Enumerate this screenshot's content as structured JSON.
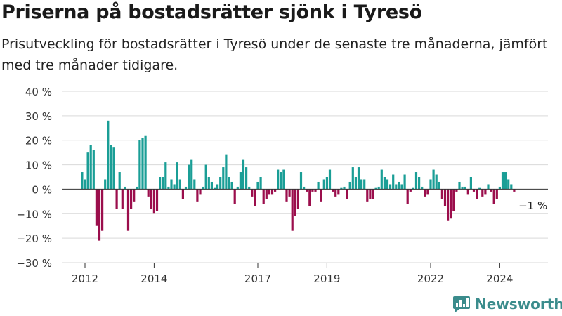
{
  "header": {
    "title": "Priserna på bostadsrätter sjönk i Tyresö",
    "subtitle": "Prisutveckling för bostadsrätter i Tyresö under de senaste tre månaderna, jämfört med tre månader tidigare."
  },
  "brand": {
    "name": "Newsworthy"
  },
  "colors": {
    "positive": "#1a9e96",
    "negative": "#9b0e4c",
    "grid": "#d9d9d9",
    "axis": "#333333",
    "brand": "#3b8c8c"
  },
  "chart_data": {
    "type": "bar",
    "x_start": "2011-12",
    "x_end": "2025-01",
    "ylim": [
      -30,
      40
    ],
    "yticks": [
      40,
      30,
      20,
      10,
      0,
      -10,
      -20,
      -30
    ],
    "ytick_labels": [
      "40 %",
      "30 %",
      "20 %",
      "10 %",
      "0 %",
      "−10 %",
      "−20 %",
      "−30 %"
    ],
    "xticks": [
      {
        "date": "2012-01",
        "label": "2012"
      },
      {
        "date": "2014-01",
        "label": "2014"
      },
      {
        "date": "2017-01",
        "label": "2017"
      },
      {
        "date": "2019-01",
        "label": "2019"
      },
      {
        "date": "2022-01",
        "label": "2022"
      },
      {
        "date": "2024-01",
        "label": "2024"
      }
    ],
    "annotation": {
      "text": "−1 %",
      "date": "2024-08",
      "value": -1
    },
    "series": [
      {
        "values": [
          {
            "date": "2011-12",
            "value": 7
          },
          {
            "date": "2012-01",
            "value": 4
          },
          {
            "date": "2012-02",
            "value": 15
          },
          {
            "date": "2012-03",
            "value": 18
          },
          {
            "date": "2012-04",
            "value": 16
          },
          {
            "date": "2012-05",
            "value": -15
          },
          {
            "date": "2012-06",
            "value": -21
          },
          {
            "date": "2012-07",
            "value": -17
          },
          {
            "date": "2012-08",
            "value": 4
          },
          {
            "date": "2012-09",
            "value": 28
          },
          {
            "date": "2012-10",
            "value": 18
          },
          {
            "date": "2012-11",
            "value": 17
          },
          {
            "date": "2012-12",
            "value": -8
          },
          {
            "date": "2013-01",
            "value": 7
          },
          {
            "date": "2013-02",
            "value": -8
          },
          {
            "date": "2013-03",
            "value": 1
          },
          {
            "date": "2013-04",
            "value": -17
          },
          {
            "date": "2013-05",
            "value": -8
          },
          {
            "date": "2013-06",
            "value": -5
          },
          {
            "date": "2013-07",
            "value": 1
          },
          {
            "date": "2013-08",
            "value": 20
          },
          {
            "date": "2013-09",
            "value": 21
          },
          {
            "date": "2013-10",
            "value": 22
          },
          {
            "date": "2013-11",
            "value": -3
          },
          {
            "date": "2013-12",
            "value": -8
          },
          {
            "date": "2014-01",
            "value": -10
          },
          {
            "date": "2014-02",
            "value": -9
          },
          {
            "date": "2014-03",
            "value": 5
          },
          {
            "date": "2014-04",
            "value": 5
          },
          {
            "date": "2014-05",
            "value": 11
          },
          {
            "date": "2014-06",
            "value": 1
          },
          {
            "date": "2014-07",
            "value": 4
          },
          {
            "date": "2014-08",
            "value": 2
          },
          {
            "date": "2014-09",
            "value": 11
          },
          {
            "date": "2014-10",
            "value": 4
          },
          {
            "date": "2014-11",
            "value": -4
          },
          {
            "date": "2014-12",
            "value": 1
          },
          {
            "date": "2015-01",
            "value": 10
          },
          {
            "date": "2015-02",
            "value": 12
          },
          {
            "date": "2015-03",
            "value": 4
          },
          {
            "date": "2015-04",
            "value": -5
          },
          {
            "date": "2015-05",
            "value": -2
          },
          {
            "date": "2015-06",
            "value": 1
          },
          {
            "date": "2015-07",
            "value": 10
          },
          {
            "date": "2015-08",
            "value": 5
          },
          {
            "date": "2015-09",
            "value": 3
          },
          {
            "date": "2015-10",
            "value": 0.5
          },
          {
            "date": "2015-11",
            "value": 2
          },
          {
            "date": "2015-12",
            "value": 5
          },
          {
            "date": "2016-01",
            "value": 9
          },
          {
            "date": "2016-02",
            "value": 14
          },
          {
            "date": "2016-03",
            "value": 5
          },
          {
            "date": "2016-04",
            "value": 3
          },
          {
            "date": "2016-05",
            "value": -6
          },
          {
            "date": "2016-06",
            "value": 1
          },
          {
            "date": "2016-07",
            "value": 7
          },
          {
            "date": "2016-08",
            "value": 12
          },
          {
            "date": "2016-09",
            "value": 9
          },
          {
            "date": "2016-10",
            "value": 1
          },
          {
            "date": "2016-11",
            "value": -3
          },
          {
            "date": "2016-12",
            "value": -7
          },
          {
            "date": "2017-01",
            "value": 3
          },
          {
            "date": "2017-02",
            "value": 5
          },
          {
            "date": "2017-03",
            "value": -6
          },
          {
            "date": "2017-04",
            "value": -4
          },
          {
            "date": "2017-05",
            "value": -2
          },
          {
            "date": "2017-06",
            "value": -2
          },
          {
            "date": "2017-07",
            "value": -1
          },
          {
            "date": "2017-08",
            "value": 8
          },
          {
            "date": "2017-09",
            "value": 7
          },
          {
            "date": "2017-10",
            "value": 8
          },
          {
            "date": "2017-11",
            "value": -5
          },
          {
            "date": "2017-12",
            "value": -3
          },
          {
            "date": "2018-01",
            "value": -17
          },
          {
            "date": "2018-02",
            "value": -11
          },
          {
            "date": "2018-03",
            "value": -8
          },
          {
            "date": "2018-04",
            "value": 7
          },
          {
            "date": "2018-05",
            "value": 1
          },
          {
            "date": "2018-06",
            "value": -1
          },
          {
            "date": "2018-07",
            "value": -7
          },
          {
            "date": "2018-08",
            "value": -1
          },
          {
            "date": "2018-09",
            "value": -1
          },
          {
            "date": "2018-10",
            "value": 3
          },
          {
            "date": "2018-11",
            "value": -5
          },
          {
            "date": "2018-12",
            "value": 4
          },
          {
            "date": "2019-01",
            "value": 5
          },
          {
            "date": "2019-02",
            "value": 8
          },
          {
            "date": "2019-03",
            "value": -1
          },
          {
            "date": "2019-04",
            "value": -3
          },
          {
            "date": "2019-05",
            "value": -2
          },
          {
            "date": "2019-06",
            "value": 0.5
          },
          {
            "date": "2019-07",
            "value": 1
          },
          {
            "date": "2019-08",
            "value": -4
          },
          {
            "date": "2019-09",
            "value": 3
          },
          {
            "date": "2019-10",
            "value": 9
          },
          {
            "date": "2019-11",
            "value": 5
          },
          {
            "date": "2019-12",
            "value": 9
          },
          {
            "date": "2020-01",
            "value": 4
          },
          {
            "date": "2020-02",
            "value": 4
          },
          {
            "date": "2020-03",
            "value": -5
          },
          {
            "date": "2020-04",
            "value": -4
          },
          {
            "date": "2020-05",
            "value": -4
          },
          {
            "date": "2020-06",
            "value": 0.5
          },
          {
            "date": "2020-07",
            "value": 1
          },
          {
            "date": "2020-08",
            "value": 8
          },
          {
            "date": "2020-09",
            "value": 5
          },
          {
            "date": "2020-10",
            "value": 4
          },
          {
            "date": "2020-11",
            "value": 2
          },
          {
            "date": "2020-12",
            "value": 6
          },
          {
            "date": "2021-01",
            "value": 2
          },
          {
            "date": "2021-02",
            "value": 3
          },
          {
            "date": "2021-03",
            "value": 2
          },
          {
            "date": "2021-04",
            "value": 6
          },
          {
            "date": "2021-05",
            "value": -6
          },
          {
            "date": "2021-06",
            "value": -1
          },
          {
            "date": "2021-07",
            "value": 0.5
          },
          {
            "date": "2021-08",
            "value": 7
          },
          {
            "date": "2021-09",
            "value": 5
          },
          {
            "date": "2021-10",
            "value": 1
          },
          {
            "date": "2021-11",
            "value": -3
          },
          {
            "date": "2021-12",
            "value": -2
          },
          {
            "date": "2022-01",
            "value": 4
          },
          {
            "date": "2022-02",
            "value": 8
          },
          {
            "date": "2022-03",
            "value": 6
          },
          {
            "date": "2022-04",
            "value": 3
          },
          {
            "date": "2022-05",
            "value": -4
          },
          {
            "date": "2022-06",
            "value": -7
          },
          {
            "date": "2022-07",
            "value": -13
          },
          {
            "date": "2022-08",
            "value": -12
          },
          {
            "date": "2022-09",
            "value": -9
          },
          {
            "date": "2022-10",
            "value": -1
          },
          {
            "date": "2022-11",
            "value": 3
          },
          {
            "date": "2022-12",
            "value": 1
          },
          {
            "date": "2023-01",
            "value": 1
          },
          {
            "date": "2023-02",
            "value": -2
          },
          {
            "date": "2023-03",
            "value": 5
          },
          {
            "date": "2023-04",
            "value": -1
          },
          {
            "date": "2023-05",
            "value": -4
          },
          {
            "date": "2023-06",
            "value": 0.5
          },
          {
            "date": "2023-07",
            "value": -3
          },
          {
            "date": "2023-08",
            "value": -2
          },
          {
            "date": "2023-09",
            "value": 2
          },
          {
            "date": "2023-10",
            "value": -1
          },
          {
            "date": "2023-11",
            "value": -6
          },
          {
            "date": "2023-12",
            "value": -4
          },
          {
            "date": "2024-01",
            "value": 1
          },
          {
            "date": "2024-02",
            "value": 7
          },
          {
            "date": "2024-03",
            "value": 7
          },
          {
            "date": "2024-04",
            "value": 4
          },
          {
            "date": "2024-05",
            "value": 2
          },
          {
            "date": "2024-06",
            "value": -1
          }
        ]
      }
    ]
  }
}
